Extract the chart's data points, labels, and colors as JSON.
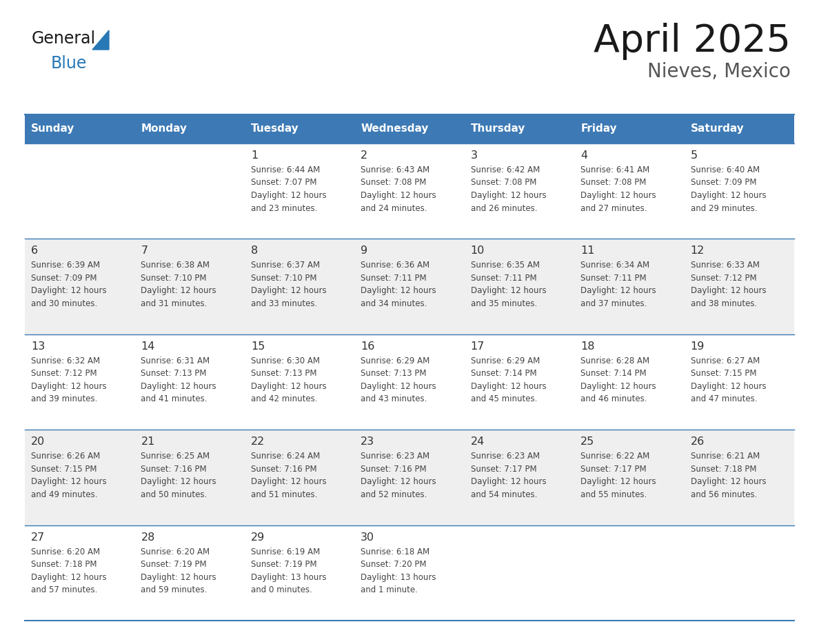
{
  "title": "April 2025",
  "subtitle": "Nieves, Mexico",
  "header_bg_color": "#3D7AB5",
  "header_text_color": "#FFFFFF",
  "day_names": [
    "Sunday",
    "Monday",
    "Tuesday",
    "Wednesday",
    "Thursday",
    "Friday",
    "Saturday"
  ],
  "bg_color": "#FFFFFF",
  "cell_bg_even": "#EFEFEF",
  "cell_bg_odd": "#FFFFFF",
  "border_color": "#3D7AB5",
  "day_num_color": "#333333",
  "text_color": "#444444",
  "title_color": "#1a1a1a",
  "subtitle_color": "#555555",
  "generalblue_black": "#1a1a1a",
  "generalblue_blue": "#2878B5",
  "calendar": [
    [
      {
        "day": null,
        "info": null
      },
      {
        "day": null,
        "info": null
      },
      {
        "day": 1,
        "info": "Sunrise: 6:44 AM\nSunset: 7:07 PM\nDaylight: 12 hours\nand 23 minutes."
      },
      {
        "day": 2,
        "info": "Sunrise: 6:43 AM\nSunset: 7:08 PM\nDaylight: 12 hours\nand 24 minutes."
      },
      {
        "day": 3,
        "info": "Sunrise: 6:42 AM\nSunset: 7:08 PM\nDaylight: 12 hours\nand 26 minutes."
      },
      {
        "day": 4,
        "info": "Sunrise: 6:41 AM\nSunset: 7:08 PM\nDaylight: 12 hours\nand 27 minutes."
      },
      {
        "day": 5,
        "info": "Sunrise: 6:40 AM\nSunset: 7:09 PM\nDaylight: 12 hours\nand 29 minutes."
      }
    ],
    [
      {
        "day": 6,
        "info": "Sunrise: 6:39 AM\nSunset: 7:09 PM\nDaylight: 12 hours\nand 30 minutes."
      },
      {
        "day": 7,
        "info": "Sunrise: 6:38 AM\nSunset: 7:10 PM\nDaylight: 12 hours\nand 31 minutes."
      },
      {
        "day": 8,
        "info": "Sunrise: 6:37 AM\nSunset: 7:10 PM\nDaylight: 12 hours\nand 33 minutes."
      },
      {
        "day": 9,
        "info": "Sunrise: 6:36 AM\nSunset: 7:11 PM\nDaylight: 12 hours\nand 34 minutes."
      },
      {
        "day": 10,
        "info": "Sunrise: 6:35 AM\nSunset: 7:11 PM\nDaylight: 12 hours\nand 35 minutes."
      },
      {
        "day": 11,
        "info": "Sunrise: 6:34 AM\nSunset: 7:11 PM\nDaylight: 12 hours\nand 37 minutes."
      },
      {
        "day": 12,
        "info": "Sunrise: 6:33 AM\nSunset: 7:12 PM\nDaylight: 12 hours\nand 38 minutes."
      }
    ],
    [
      {
        "day": 13,
        "info": "Sunrise: 6:32 AM\nSunset: 7:12 PM\nDaylight: 12 hours\nand 39 minutes."
      },
      {
        "day": 14,
        "info": "Sunrise: 6:31 AM\nSunset: 7:13 PM\nDaylight: 12 hours\nand 41 minutes."
      },
      {
        "day": 15,
        "info": "Sunrise: 6:30 AM\nSunset: 7:13 PM\nDaylight: 12 hours\nand 42 minutes."
      },
      {
        "day": 16,
        "info": "Sunrise: 6:29 AM\nSunset: 7:13 PM\nDaylight: 12 hours\nand 43 minutes."
      },
      {
        "day": 17,
        "info": "Sunrise: 6:29 AM\nSunset: 7:14 PM\nDaylight: 12 hours\nand 45 minutes."
      },
      {
        "day": 18,
        "info": "Sunrise: 6:28 AM\nSunset: 7:14 PM\nDaylight: 12 hours\nand 46 minutes."
      },
      {
        "day": 19,
        "info": "Sunrise: 6:27 AM\nSunset: 7:15 PM\nDaylight: 12 hours\nand 47 minutes."
      }
    ],
    [
      {
        "day": 20,
        "info": "Sunrise: 6:26 AM\nSunset: 7:15 PM\nDaylight: 12 hours\nand 49 minutes."
      },
      {
        "day": 21,
        "info": "Sunrise: 6:25 AM\nSunset: 7:16 PM\nDaylight: 12 hours\nand 50 minutes."
      },
      {
        "day": 22,
        "info": "Sunrise: 6:24 AM\nSunset: 7:16 PM\nDaylight: 12 hours\nand 51 minutes."
      },
      {
        "day": 23,
        "info": "Sunrise: 6:23 AM\nSunset: 7:16 PM\nDaylight: 12 hours\nand 52 minutes."
      },
      {
        "day": 24,
        "info": "Sunrise: 6:23 AM\nSunset: 7:17 PM\nDaylight: 12 hours\nand 54 minutes."
      },
      {
        "day": 25,
        "info": "Sunrise: 6:22 AM\nSunset: 7:17 PM\nDaylight: 12 hours\nand 55 minutes."
      },
      {
        "day": 26,
        "info": "Sunrise: 6:21 AM\nSunset: 7:18 PM\nDaylight: 12 hours\nand 56 minutes."
      }
    ],
    [
      {
        "day": 27,
        "info": "Sunrise: 6:20 AM\nSunset: 7:18 PM\nDaylight: 12 hours\nand 57 minutes."
      },
      {
        "day": 28,
        "info": "Sunrise: 6:20 AM\nSunset: 7:19 PM\nDaylight: 12 hours\nand 59 minutes."
      },
      {
        "day": 29,
        "info": "Sunrise: 6:19 AM\nSunset: 7:19 PM\nDaylight: 13 hours\nand 0 minutes."
      },
      {
        "day": 30,
        "info": "Sunrise: 6:18 AM\nSunset: 7:20 PM\nDaylight: 13 hours\nand 1 minute."
      },
      {
        "day": null,
        "info": null
      },
      {
        "day": null,
        "info": null
      },
      {
        "day": null,
        "info": null
      }
    ]
  ]
}
